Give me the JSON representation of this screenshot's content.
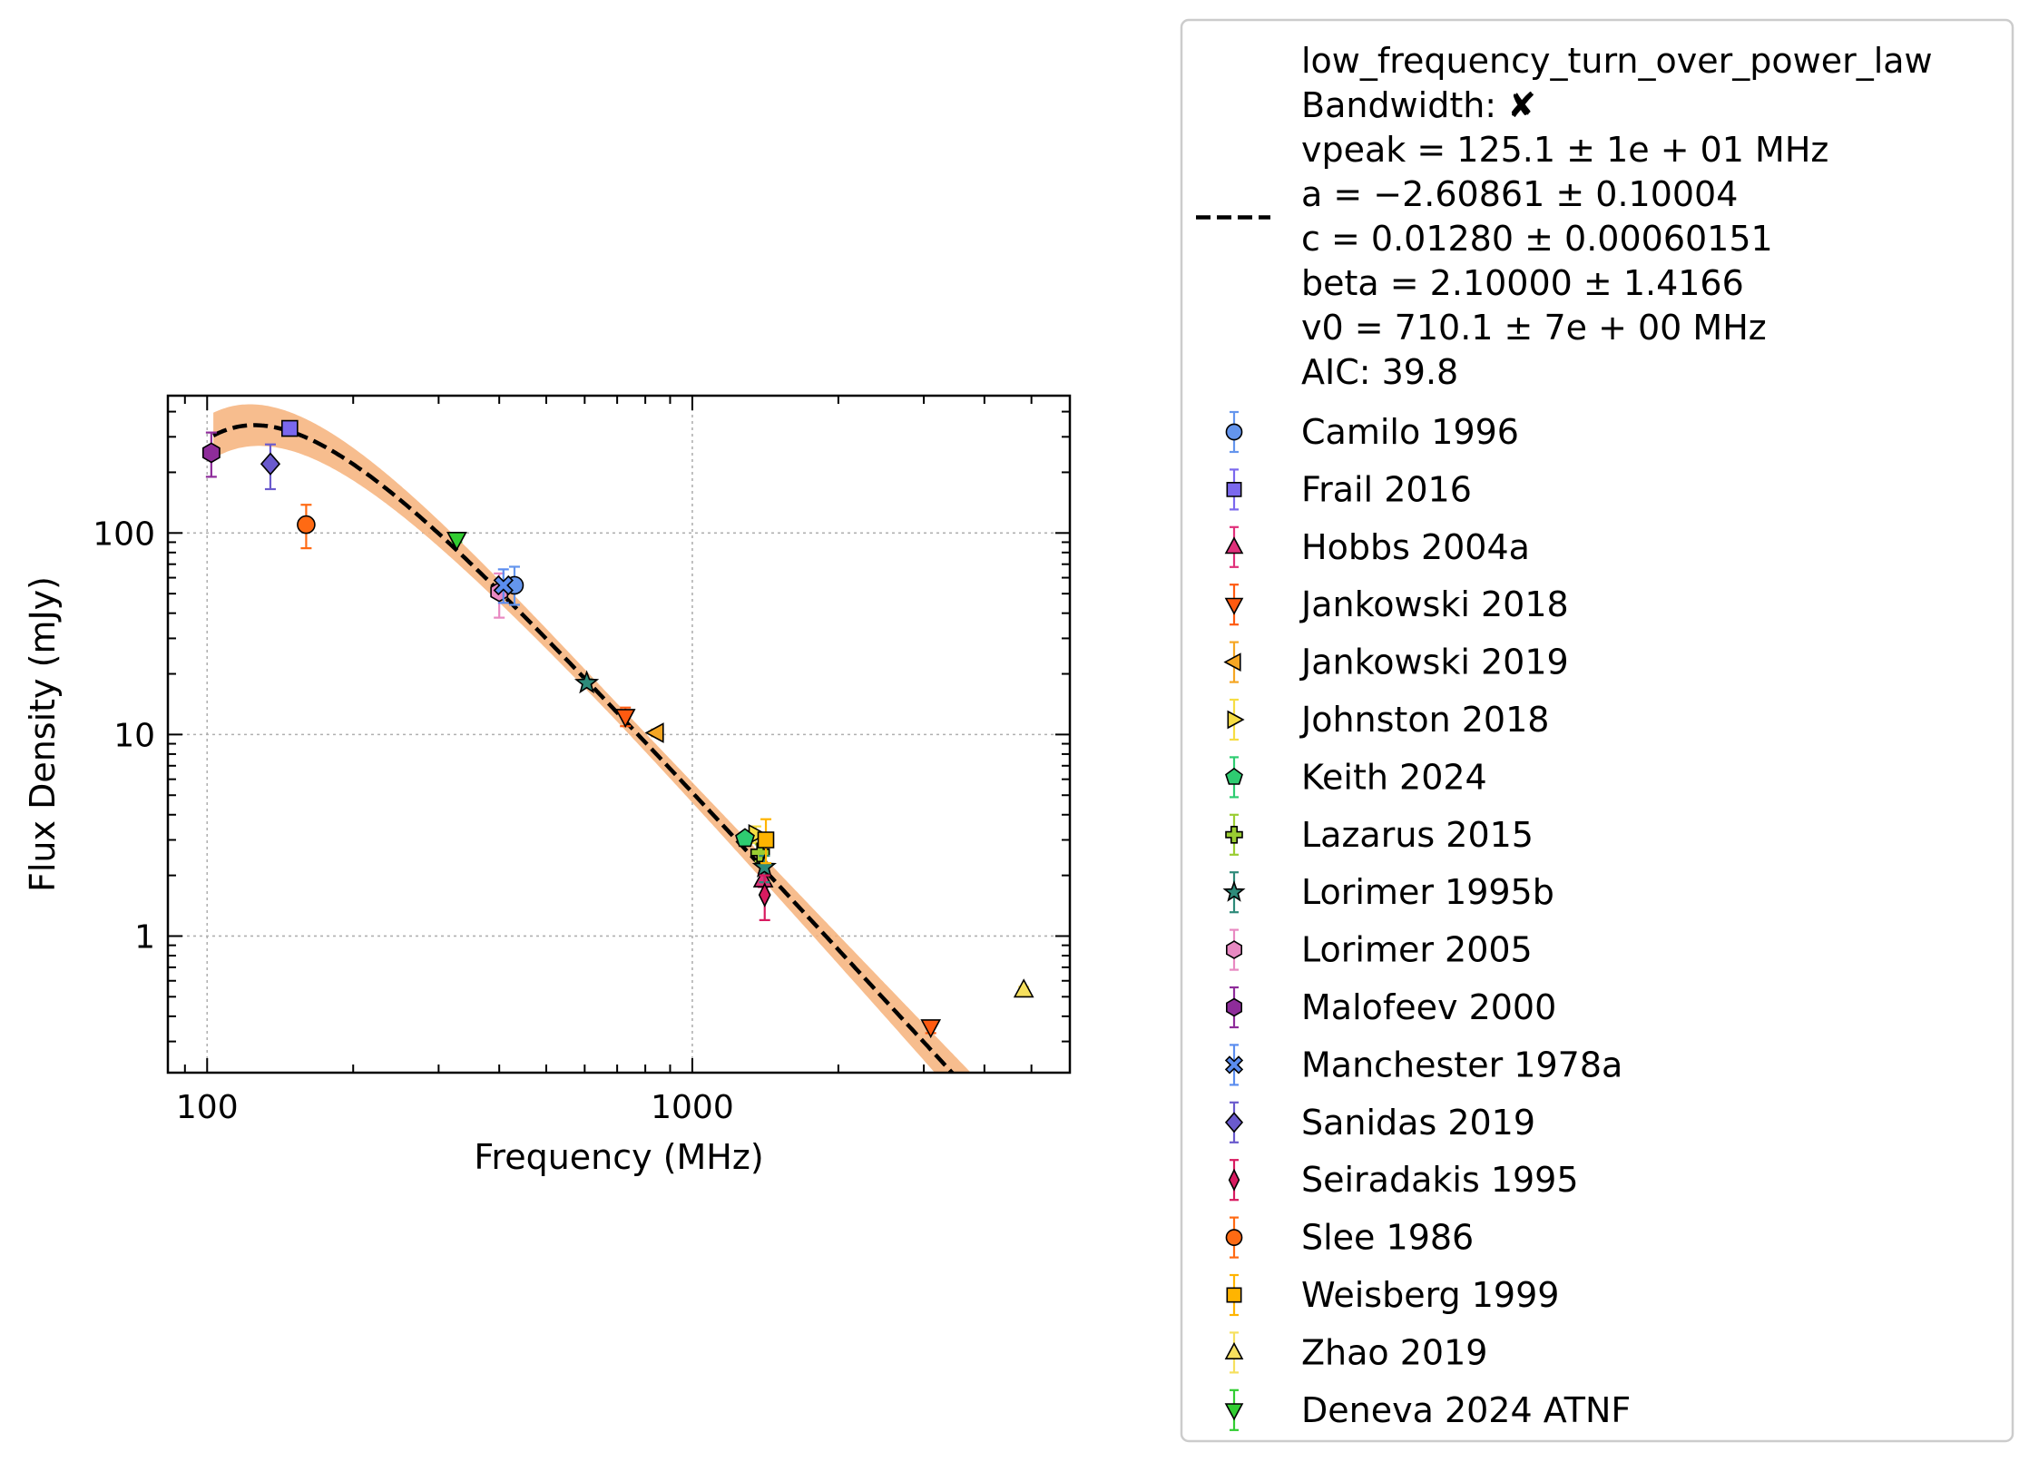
{
  "chart_data": {
    "type": "scatter",
    "title": "",
    "xlabel": "Frequency (MHz)",
    "ylabel": "Flux Density (mJy)",
    "xscale": "log",
    "yscale": "log",
    "xlim": [
      83,
      6000
    ],
    "ylim": [
      0.21,
      480
    ],
    "grid": true,
    "legend_position": "outside-right",
    "xticks": [
      {
        "value": 100,
        "label": "100"
      },
      {
        "value": 1000,
        "label": "1000"
      }
    ],
    "yticks": [
      {
        "value": 1,
        "label": "1"
      },
      {
        "value": 10,
        "label": "10"
      },
      {
        "value": 100,
        "label": "100"
      }
    ],
    "fit": {
      "model": "low_frequency_turn_over_power_law",
      "vpeak": 125.1,
      "a": -2.60861,
      "c": 0.0128,
      "beta": 2.1,
      "v0": 710.1,
      "color": "#000000",
      "band_color": "#f6b27a",
      "legend_lines": [
        "low_frequency_turn_over_power_law",
        "Bandwidth: ✘",
        "vpeak = 125.1 ± 1e + 01 MHz",
        "a = −2.60861 ± 0.10004",
        "c = 0.01280 ± 0.00060151",
        "beta = 2.10000 ± 1.4166",
        "v0 = 710.1 ± 7e + 00 MHz",
        "AIC: 39.8"
      ]
    },
    "series": [
      {
        "name": "Camilo 1996",
        "marker": "circle",
        "color": "#6495ed",
        "points": [
          {
            "x": 430,
            "y": 55,
            "lo": 44,
            "hi": 68
          }
        ]
      },
      {
        "name": "Frail 2016",
        "marker": "square",
        "color": "#7b68ee",
        "points": [
          {
            "x": 148,
            "y": 330,
            "lo": 322,
            "hi": 338
          }
        ]
      },
      {
        "name": "Hobbs 2004a",
        "marker": "triangle-up",
        "color": "#e0307a",
        "points": [
          {
            "x": 1400,
            "y": 1.9,
            "lo": 1.75,
            "hi": 2.05
          }
        ]
      },
      {
        "name": "Jankowski 2018",
        "marker": "triangle-down",
        "color": "#ff5a10",
        "points": [
          {
            "x": 728,
            "y": 12.3,
            "lo": 11.0,
            "hi": 13.6
          },
          {
            "x": 3100,
            "y": 0.355,
            "lo": 0.33,
            "hi": 0.38
          }
        ]
      },
      {
        "name": "Jankowski 2019",
        "marker": "triangle-left",
        "color": "#f5a623",
        "points": [
          {
            "x": 843,
            "y": 10.2,
            "lo": 9.8,
            "hi": 10.6
          }
        ]
      },
      {
        "name": "Johnston 2018",
        "marker": "triangle-right",
        "color": "#f6dd43",
        "points": [
          {
            "x": 1352,
            "y": 3.2,
            "lo": 2.9,
            "hi": 3.5
          }
        ]
      },
      {
        "name": "Keith 2024",
        "marker": "pentagon",
        "color": "#2ecc71",
        "points": [
          {
            "x": 1284,
            "y": 3.05,
            "lo": 2.85,
            "hi": 3.25
          }
        ]
      },
      {
        "name": "Lazarus 2015",
        "marker": "plus",
        "color": "#9acd32",
        "points": [
          {
            "x": 1380,
            "y": 2.6,
            "lo": 2.35,
            "hi": 2.85
          }
        ]
      },
      {
        "name": "Lorimer 1995b",
        "marker": "star",
        "color": "#2e8b7a",
        "points": [
          {
            "x": 606,
            "y": 18,
            "lo": 17.2,
            "hi": 18.8
          },
          {
            "x": 1408,
            "y": 2.2,
            "lo": 1.85,
            "hi": 2.5
          }
        ]
      },
      {
        "name": "Lorimer 2005",
        "marker": "hexagon",
        "color": "#e889c2",
        "points": [
          {
            "x": 400,
            "y": 51,
            "lo": 38,
            "hi": 63
          }
        ]
      },
      {
        "name": "Malofeev 2000",
        "marker": "hexagon",
        "color": "#8e2c9a",
        "points": [
          {
            "x": 102,
            "y": 250,
            "lo": 190,
            "hi": 315
          }
        ]
      },
      {
        "name": "Manchester 1978a",
        "marker": "x",
        "color": "#5b8def",
        "points": [
          {
            "x": 408,
            "y": 55,
            "lo": 45,
            "hi": 66
          }
        ]
      },
      {
        "name": "Sanidas 2019",
        "marker": "diamond",
        "color": "#6a5acd",
        "points": [
          {
            "x": 135,
            "y": 220,
            "lo": 165,
            "hi": 275
          }
        ]
      },
      {
        "name": "Seiradakis 1995",
        "marker": "thin-diamond",
        "color": "#d81b60",
        "points": [
          {
            "x": 1410,
            "y": 1.6,
            "lo": 1.2,
            "hi": 2.0
          }
        ]
      },
      {
        "name": "Slee 1986",
        "marker": "circle",
        "color": "#ff6a13",
        "points": [
          {
            "x": 160,
            "y": 110,
            "lo": 84,
            "hi": 138
          }
        ]
      },
      {
        "name": "Weisberg 1999",
        "marker": "square",
        "color": "#ffb400",
        "points": [
          {
            "x": 1418,
            "y": 3.0,
            "lo": 2.3,
            "hi": 3.8
          }
        ]
      },
      {
        "name": "Zhao 2019",
        "marker": "triangle-up",
        "color": "#f6e05e",
        "points": [
          {
            "x": 4820,
            "y": 0.54,
            "lo": 0.52,
            "hi": 0.56
          }
        ]
      },
      {
        "name": "Deneva 2024 ATNF",
        "marker": "triangle-down",
        "color": "#32cd32",
        "points": [
          {
            "x": 327,
            "y": 93,
            "lo": 90,
            "hi": 96
          }
        ]
      }
    ]
  }
}
